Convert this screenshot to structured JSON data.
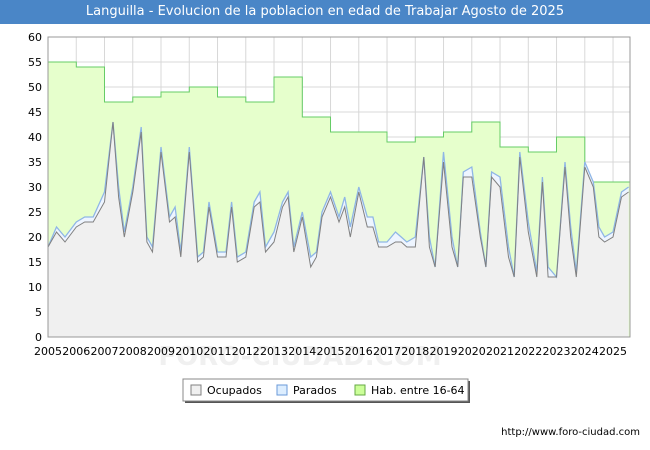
{
  "chart_data": {
    "type": "area",
    "title": "Languilla - Evolucion de la poblacion en edad de Trabajar Agosto de 2025",
    "xlabel": "",
    "ylabel": "",
    "ylim": [
      0,
      60
    ],
    "y_ticks": [
      0,
      5,
      10,
      15,
      20,
      25,
      30,
      35,
      40,
      45,
      50,
      55,
      60
    ],
    "xlim": [
      2005,
      2025.6
    ],
    "x_ticks": [
      "2005",
      "2006",
      "2007",
      "2008",
      "2009",
      "2010",
      "2011",
      "2012",
      "2013",
      "2014",
      "2015",
      "2016",
      "2017",
      "2018",
      "2019",
      "2020",
      "2021",
      "2022",
      "2023",
      "2024",
      "2025"
    ],
    "grid": true,
    "legend_position": "bottom-center",
    "colors": {
      "ocupados_fill": "#f0f0f0",
      "ocupados_line": "#808080",
      "parados_line": "#8fb6e6",
      "hab_fill": "#e6ffcc",
      "hab_line": "#66cc66",
      "title_bg": "#4a86c7"
    },
    "series": [
      {
        "name": "Hab. entre 16-64",
        "step": true,
        "x": [
          2005,
          2006,
          2007,
          2008,
          2009,
          2010,
          2011,
          2012,
          2013,
          2014,
          2015,
          2016,
          2017,
          2018,
          2019,
          2020,
          2021,
          2022,
          2023,
          2024,
          2025
        ],
        "values": [
          55,
          54,
          47,
          48,
          49,
          50,
          48,
          47,
          52,
          44,
          41,
          41,
          39,
          40,
          41,
          43,
          38,
          37,
          40,
          31,
          31
        ]
      },
      {
        "name": "Parados",
        "x": [
          2005,
          2005.3,
          2005.6,
          2006,
          2006.3,
          2006.6,
          2007,
          2007.3,
          2007.5,
          2007.7,
          2008,
          2008.3,
          2008.5,
          2008.7,
          2009,
          2009.3,
          2009.5,
          2009.7,
          2010,
          2010.3,
          2010.5,
          2010.7,
          2011,
          2011.3,
          2011.5,
          2011.7,
          2012,
          2012.3,
          2012.5,
          2012.7,
          2013,
          2013.3,
          2013.5,
          2013.7,
          2014,
          2014.3,
          2014.5,
          2014.7,
          2015,
          2015.3,
          2015.5,
          2015.7,
          2016,
          2016.3,
          2016.5,
          2016.7,
          2017,
          2017.3,
          2017.5,
          2017.7,
          2018,
          2018.3,
          2018.5,
          2018.7,
          2019,
          2019.3,
          2019.5,
          2019.7,
          2020,
          2020.3,
          2020.5,
          2020.7,
          2021,
          2021.3,
          2021.5,
          2021.7,
          2022,
          2022.3,
          2022.5,
          2022.7,
          2023,
          2023.3,
          2023.5,
          2023.7,
          2024,
          2024.3,
          2024.5,
          2024.7,
          2025,
          2025.3,
          2025.55
        ],
        "values": [
          18,
          22,
          20,
          23,
          24,
          24,
          29,
          43,
          30,
          21,
          30,
          42,
          20,
          18,
          38,
          24,
          26,
          17,
          38,
          16,
          17,
          27,
          17,
          17,
          27,
          16,
          17,
          27,
          29,
          18,
          21,
          27,
          29,
          18,
          25,
          16,
          17,
          25,
          29,
          24,
          28,
          22,
          30,
          24,
          24,
          19,
          19,
          21,
          20,
          19,
          20,
          36,
          20,
          14,
          37,
          20,
          14,
          33,
          34,
          21,
          14,
          33,
          32,
          18,
          12,
          37,
          23,
          13,
          32,
          14,
          12,
          35,
          22,
          13,
          35,
          31,
          22,
          20,
          21,
          29,
          30
        ]
      },
      {
        "name": "Ocupados",
        "x": [
          2005,
          2005.3,
          2005.6,
          2006,
          2006.3,
          2006.6,
          2007,
          2007.3,
          2007.5,
          2007.7,
          2008,
          2008.3,
          2008.5,
          2008.7,
          2009,
          2009.3,
          2009.5,
          2009.7,
          2010,
          2010.3,
          2010.5,
          2010.7,
          2011,
          2011.3,
          2011.5,
          2011.7,
          2012,
          2012.3,
          2012.5,
          2012.7,
          2013,
          2013.3,
          2013.5,
          2013.7,
          2014,
          2014.3,
          2014.5,
          2014.7,
          2015,
          2015.3,
          2015.5,
          2015.7,
          2016,
          2016.3,
          2016.5,
          2016.7,
          2017,
          2017.3,
          2017.5,
          2017.7,
          2018,
          2018.3,
          2018.5,
          2018.7,
          2019,
          2019.3,
          2019.5,
          2019.7,
          2020,
          2020.3,
          2020.5,
          2020.7,
          2021,
          2021.3,
          2021.5,
          2021.7,
          2022,
          2022.3,
          2022.5,
          2022.7,
          2023,
          2023.3,
          2023.5,
          2023.7,
          2024,
          2024.3,
          2024.5,
          2024.7,
          2025,
          2025.3,
          2025.55
        ],
        "values": [
          18,
          21,
          19,
          22,
          23,
          23,
          27,
          43,
          28,
          20,
          29,
          41,
          19,
          17,
          37,
          23,
          24,
          16,
          37,
          15,
          16,
          26,
          16,
          16,
          26,
          15,
          16,
          26,
          27,
          17,
          19,
          26,
          28,
          17,
          24,
          14,
          16,
          24,
          28,
          23,
          26,
          20,
          29,
          22,
          22,
          18,
          18,
          19,
          19,
          18,
          18,
          36,
          18,
          14,
          35,
          18,
          14,
          32,
          32,
          20,
          14,
          32,
          30,
          16,
          12,
          36,
          21,
          12,
          31,
          12,
          12,
          34,
          20,
          12,
          34,
          30,
          20,
          19,
          20,
          28,
          29
        ]
      }
    ]
  },
  "legend": {
    "items": [
      {
        "label": "Ocupados",
        "color": "#f0f0f0",
        "border": "#808080"
      },
      {
        "label": "Parados",
        "color": "#ddeeff",
        "border": "#6a9ad9"
      },
      {
        "label": "Hab. entre 16-64",
        "color": "#ccff99",
        "border": "#66aa44"
      }
    ]
  },
  "footer": {
    "url": "http://www.foro-ciudad.com"
  },
  "watermark": "FORO-CIUDAD.COM"
}
